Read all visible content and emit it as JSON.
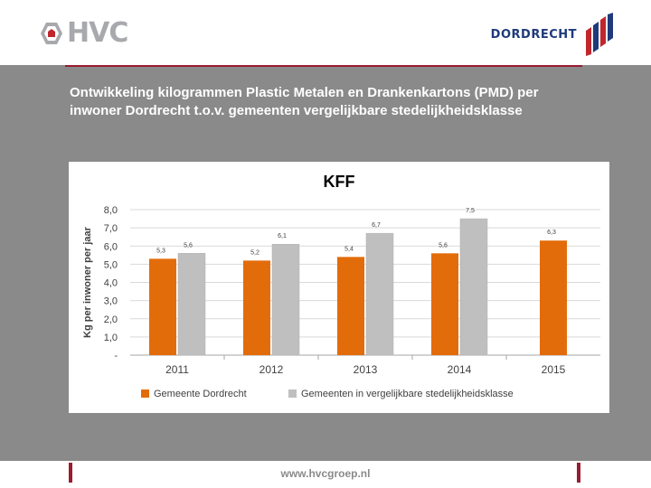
{
  "header": {
    "left_logo_text": "HVC",
    "right_logo_text": "DORDRECHT"
  },
  "slide": {
    "title": "Ontwikkeling kilogrammen Plastic Metalen en Drankenkartons (PMD) per inwoner Dordrecht t.o.v. gemeenten vergelijkbare stedelijkheidsklasse"
  },
  "footer": {
    "url": "www.hvcgroep.nl"
  },
  "colors": {
    "series1": "#e36c0a",
    "series2": "#bfbfbf",
    "accent": "#9b1b30",
    "grid": "#d9d9d9"
  },
  "chart_data": {
    "type": "bar",
    "title": "KFF",
    "xlabel": "",
    "ylabel": "Kg per inwoner per jaar",
    "categories": [
      "2011",
      "2012",
      "2013",
      "2014",
      "2015"
    ],
    "ylim": [
      0,
      8
    ],
    "yticks": [
      "-",
      "1,0",
      "2,0",
      "3,0",
      "4,0",
      "5,0",
      "6,0",
      "7,0",
      "8,0"
    ],
    "grid": true,
    "legend_position": "bottom",
    "series": [
      {
        "name": "Gemeente Dordrecht",
        "values": [
          5.3,
          5.2,
          5.4,
          5.6,
          6.3
        ],
        "labels": [
          "5,3",
          "5,2",
          "5,4",
          "5,6",
          "6,3"
        ]
      },
      {
        "name": "Gemeenten in vergelijkbare stedelijkheidsklasse",
        "values": [
          5.6,
          6.1,
          6.7,
          7.5,
          null
        ],
        "labels": [
          "5,6",
          "6,1",
          "6,7",
          "7,5",
          null
        ]
      }
    ]
  }
}
